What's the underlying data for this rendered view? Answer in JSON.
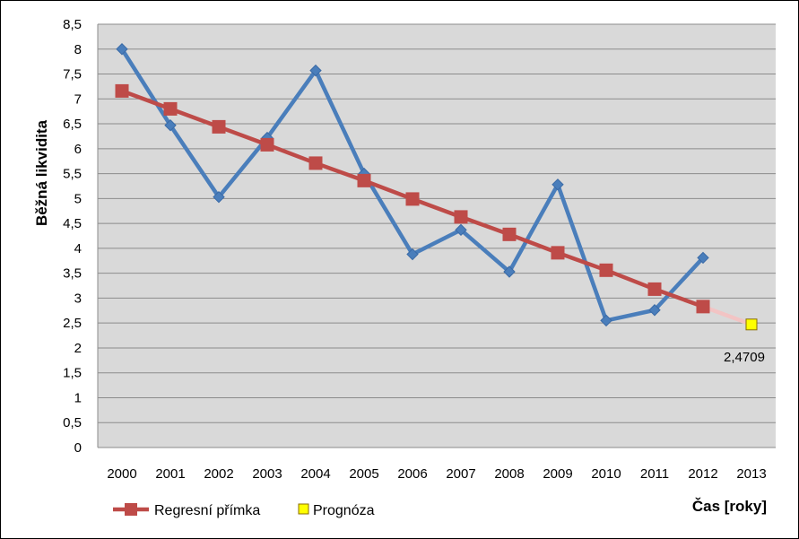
{
  "chart_data": {
    "type": "line",
    "title": "",
    "xlabel": "Čas [roky]",
    "ylabel": "Běžná likvidita",
    "ylim": [
      0,
      8.5
    ],
    "ytick_step": 0.5,
    "ytick_labels": [
      "0",
      "0,5",
      "1",
      "1,5",
      "2",
      "2,5",
      "3",
      "3,5",
      "4",
      "4,5",
      "5",
      "5,5",
      "6",
      "6,5",
      "7",
      "7,5",
      "8",
      "8,5"
    ],
    "categories": [
      "2000",
      "2001",
      "2002",
      "2003",
      "2004",
      "2005",
      "2006",
      "2007",
      "2008",
      "2009",
      "2010",
      "2011",
      "2012",
      "2013"
    ],
    "grid": true,
    "legend": "bottom-left",
    "series": [
      {
        "name": "Běžná likvidita",
        "color": "#4a7ebb",
        "marker": "diamond",
        "in_legend": false,
        "values": [
          8.0,
          6.47,
          5.03,
          6.22,
          7.57,
          5.5,
          3.88,
          4.37,
          3.53,
          5.28,
          2.55,
          2.76,
          3.81,
          null
        ]
      },
      {
        "name": "Regresní přímka",
        "color": "#be4b48",
        "marker": "square",
        "in_legend": true,
        "values": [
          7.16,
          6.8,
          6.44,
          6.08,
          5.71,
          5.36,
          4.99,
          4.63,
          4.28,
          3.91,
          3.56,
          3.18,
          2.83,
          null
        ]
      },
      {
        "name": "Prognóza",
        "color": "#ffff00",
        "edge_color": "#8a6d00",
        "marker": "square",
        "in_legend": true,
        "values": [
          null,
          null,
          null,
          null,
          null,
          null,
          null,
          null,
          null,
          null,
          null,
          null,
          null,
          2.4709
        ]
      }
    ],
    "connector": {
      "from_category": "2012",
      "to_category": "2013",
      "from_value": 2.83,
      "to_value": 2.4709,
      "color": "#f2c4c4"
    },
    "annotations": [
      {
        "category": "2013",
        "value": 2.4709,
        "text": "2,4709"
      }
    ]
  }
}
